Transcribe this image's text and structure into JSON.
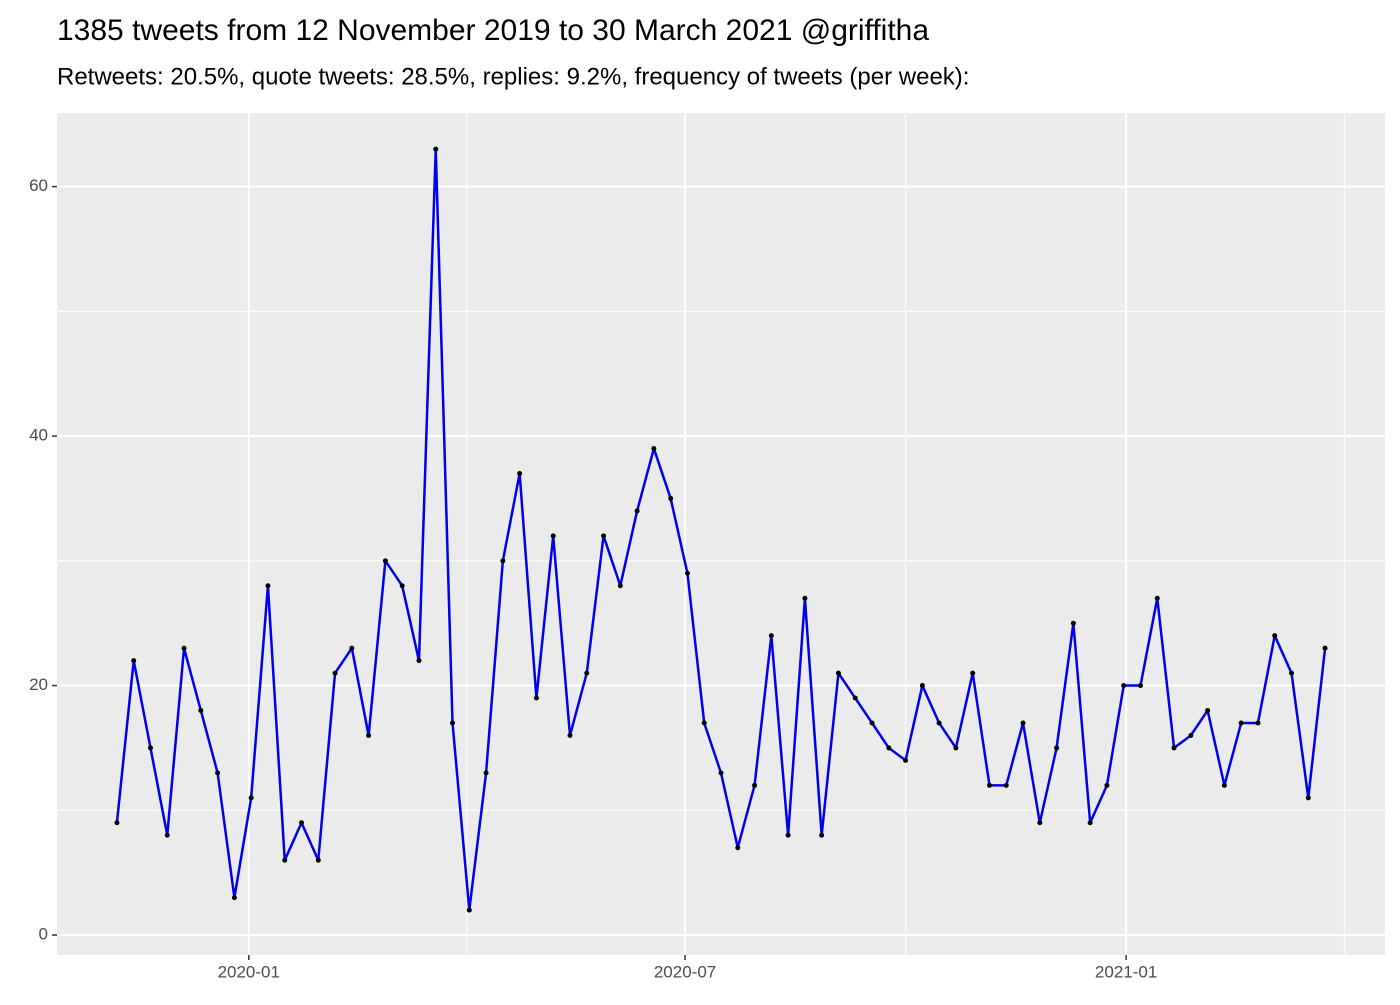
{
  "chart_data": {
    "type": "line",
    "title": "1385 tweets from 12 November 2019 to 30 March 2021 @griffitha",
    "subtitle": "Retweets: 20.5%, quote tweets: 28.5%, replies: 9.2%, frequency of tweets (per week):",
    "x": [
      "2019-11-07",
      "2019-11-14",
      "2019-11-21",
      "2019-11-28",
      "2019-12-05",
      "2019-12-12",
      "2019-12-19",
      "2019-12-26",
      "2020-01-02",
      "2020-01-09",
      "2020-01-16",
      "2020-01-23",
      "2020-01-30",
      "2020-02-06",
      "2020-02-13",
      "2020-02-20",
      "2020-02-27",
      "2020-03-05",
      "2020-03-12",
      "2020-03-19",
      "2020-03-26",
      "2020-04-02",
      "2020-04-09",
      "2020-04-16",
      "2020-04-23",
      "2020-04-30",
      "2020-05-07",
      "2020-05-14",
      "2020-05-21",
      "2020-05-28",
      "2020-06-04",
      "2020-06-11",
      "2020-06-18",
      "2020-06-25",
      "2020-07-02",
      "2020-07-09",
      "2020-07-16",
      "2020-07-23",
      "2020-07-30",
      "2020-08-06",
      "2020-08-13",
      "2020-08-20",
      "2020-08-27",
      "2020-09-03",
      "2020-09-10",
      "2020-09-17",
      "2020-09-24",
      "2020-10-01",
      "2020-10-08",
      "2020-10-15",
      "2020-10-22",
      "2020-10-29",
      "2020-11-05",
      "2020-11-12",
      "2020-11-19",
      "2020-11-26",
      "2020-12-03",
      "2020-12-10",
      "2020-12-17",
      "2020-12-24",
      "2020-12-31",
      "2021-01-07",
      "2021-01-14",
      "2021-01-21",
      "2021-01-28",
      "2021-02-04",
      "2021-02-11",
      "2021-02-18",
      "2021-02-25",
      "2021-03-04",
      "2021-03-11",
      "2021-03-18",
      "2021-03-25"
    ],
    "series": [
      {
        "color": "#0000ee",
        "point_color": "#000000",
        "values": [
          9,
          22,
          15,
          8,
          23,
          18,
          13,
          3,
          11,
          28,
          6,
          9,
          6,
          21,
          23,
          16,
          30,
          28,
          22,
          63,
          17,
          2,
          13,
          30,
          37,
          19,
          32,
          16,
          21,
          32,
          28,
          34,
          39,
          35,
          29,
          17,
          13,
          7,
          12,
          24,
          8,
          27,
          8,
          21,
          19,
          17,
          15,
          14,
          20,
          17,
          15,
          21,
          12,
          12,
          17,
          9,
          15,
          25,
          9,
          12,
          20,
          20,
          27,
          15,
          16,
          18,
          12,
          17,
          17,
          24,
          21,
          11,
          23
        ]
      }
    ],
    "xlim": [
      "2019-10-13",
      "2021-04-19"
    ],
    "xticks": [
      {
        "value": "2020-01-01",
        "label": "2020-01"
      },
      {
        "value": "2020-07-01",
        "label": "2020-07"
      },
      {
        "value": "2021-01-01",
        "label": "2021-01"
      }
    ],
    "ylim": [
      -1.6,
      65.9
    ],
    "yticks": [
      0,
      20,
      40,
      60
    ],
    "grid": true,
    "background": "#ebebeb"
  }
}
